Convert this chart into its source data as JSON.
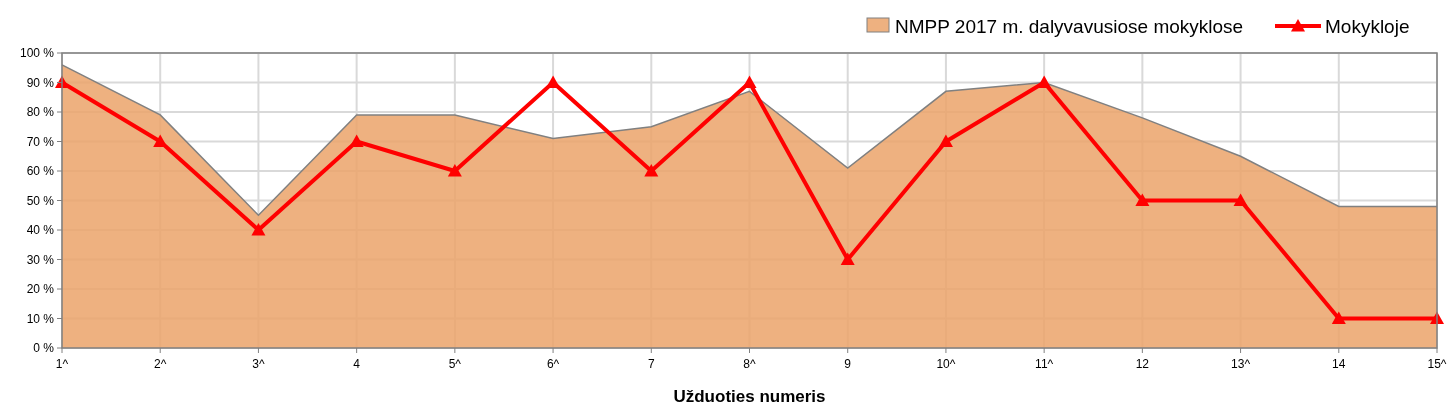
{
  "chart_data": {
    "type": "line",
    "xlabel": "Užduoties numeris",
    "categories": [
      "1^",
      "2^",
      "3^",
      "4",
      "5^",
      "6^",
      "7",
      "8^",
      "9",
      "10^",
      "11^",
      "12",
      "13^",
      "14",
      "15^"
    ],
    "series": [
      {
        "name": "NMPP 2017 m. dalyvavusiose mokyklose",
        "type": "area",
        "color": "#eba36a",
        "values": [
          96,
          79,
          45,
          79,
          79,
          71,
          75,
          87,
          61,
          87,
          90,
          78,
          65,
          48,
          48
        ]
      },
      {
        "name": "Mokykloje",
        "color": "#ff0000",
        "marker": "triangle",
        "values": [
          90,
          70,
          40,
          70,
          60,
          90,
          60,
          90,
          30,
          70,
          90,
          50,
          50,
          10,
          10
        ]
      }
    ],
    "ylim": [
      0,
      100
    ],
    "yticks": [
      {
        "value": 0,
        "label": "0 %"
      },
      {
        "value": 10,
        "label": "10 %"
      },
      {
        "value": 20,
        "label": "20 %"
      },
      {
        "value": 30,
        "label": "30 %"
      },
      {
        "value": 40,
        "label": "40 %"
      },
      {
        "value": 50,
        "label": "50 %"
      },
      {
        "value": 60,
        "label": "60 %"
      },
      {
        "value": 70,
        "label": "70 %"
      },
      {
        "value": 80,
        "label": "80 %"
      },
      {
        "value": 90,
        "label": "90 %"
      },
      {
        "value": 100,
        "label": "100 %"
      }
    ],
    "grid": true,
    "legend": "top right"
  }
}
